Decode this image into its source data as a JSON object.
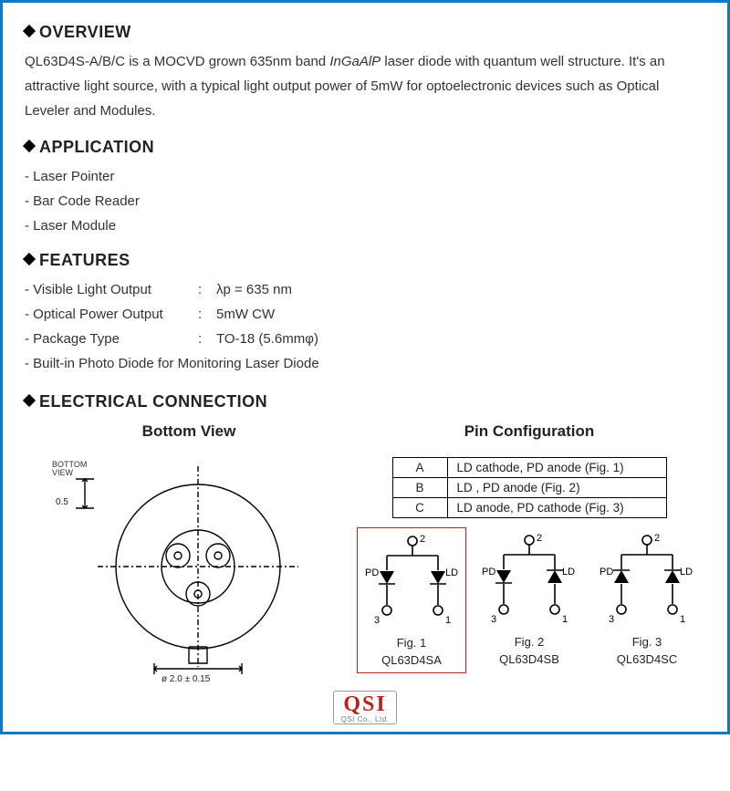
{
  "sections": {
    "overview": {
      "heading": "OVERVIEW",
      "text_a": "QL63D4S-A/B/C is a MOCVD grown 635nm band ",
      "text_ital": "InGaAlP",
      "text_b": " laser diode with quantum well structure. It's an attractive light source, with a typical light output power of 5mW for optoelectronic devices such as Optical Leveler and Modules."
    },
    "application": {
      "heading": "APPLICATION",
      "items": [
        "- Laser Pointer",
        "- Bar Code Reader",
        "- Laser Module"
      ]
    },
    "features": {
      "heading": "FEATURES",
      "rows": [
        {
          "label": "- Visible Light Output",
          "sep": ":",
          "value": "λp = 635 nm"
        },
        {
          "label": "- Optical Power Output",
          "sep": ":",
          "value": "5mW CW"
        },
        {
          "label": "- Package Type",
          "sep": ":",
          "value": "TO-18 (5.6mmφ)"
        }
      ],
      "last": "- Built-in Photo Diode for Monitoring Laser Diode"
    },
    "elec": {
      "heading": "ELECTRICAL CONNECTION",
      "left_title": "Bottom View",
      "right_title": "Pin Configuration",
      "bv_label_top": "BOTTOM",
      "bv_label_top2": "VIEW",
      "bv_dim_left": "0.5",
      "bv_dim_bottom": "ø 2.0 ± 0.15",
      "pin_table": [
        {
          "k": "A",
          "v": "LD cathode, PD anode (Fig. 1)"
        },
        {
          "k": "B",
          "v": "LD , PD anode (Fig. 2)"
        },
        {
          "k": "C",
          "v": "LD anode, PD cathode (Fig. 3)"
        }
      ],
      "figs": [
        {
          "caption": "Fig. 1",
          "model": "QL63D4SA",
          "selected": true,
          "pd_label": "PD",
          "ld_label": "LD",
          "p1": "1",
          "p2": "2",
          "p3": "3",
          "pd_dir": "down",
          "ld_dir": "down"
        },
        {
          "caption": "Fig. 2",
          "model": "QL63D4SB",
          "selected": false,
          "pd_label": "PD",
          "ld_label": "LD",
          "p1": "1",
          "p2": "2",
          "p3": "3",
          "pd_dir": "down",
          "ld_dir": "up"
        },
        {
          "caption": "Fig. 3",
          "model": "QL63D4SC",
          "selected": false,
          "pd_label": "PD",
          "ld_label": "LD",
          "p1": "1",
          "p2": "2",
          "p3": "3",
          "pd_dir": "up",
          "ld_dir": "up"
        }
      ]
    }
  },
  "colors": {
    "frame": "#1178c6",
    "highlight": "#b8231e",
    "text": "#222222",
    "line": "#000000"
  },
  "logo": {
    "text": "QSI",
    "sub": "QSI Co., Ltd."
  }
}
